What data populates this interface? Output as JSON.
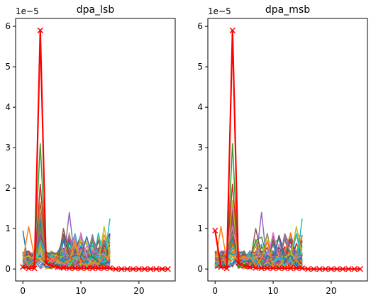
{
  "chart_data": [
    {
      "type": "line",
      "title": "dpa_lsb",
      "offset_label": "1e−5",
      "xlabel": "",
      "ylabel": "",
      "xlim": [
        -1.25,
        26.25
      ],
      "ylim": [
        -0.295,
        6.195
      ],
      "xticks": [
        0,
        10,
        20
      ],
      "yticks": [
        0,
        1,
        2,
        3,
        4,
        5,
        6
      ],
      "grid": false,
      "legend": "none",
      "highlight": {
        "name": "max",
        "color": "#ff0000",
        "marker": "x",
        "x": [
          0,
          1,
          2,
          3,
          4,
          5,
          6,
          7,
          8,
          9,
          10,
          11,
          12,
          13,
          14,
          15,
          16,
          17,
          18,
          19,
          20,
          21,
          22,
          23,
          24,
          25
        ],
        "y": [
          0.05,
          0.02,
          0.02,
          5.9,
          0.15,
          0.08,
          0.05,
          0.03,
          0.02,
          0.02,
          0.02,
          0.02,
          0.02,
          0.02,
          0.02,
          0.02,
          0.0,
          0.0,
          0.0,
          0.0,
          0.0,
          0.0,
          0.0,
          0.0,
          0.0,
          0.0
        ]
      },
      "background_series": {
        "count": "many",
        "colors": [
          "#1f77b4",
          "#ff7f0e",
          "#2ca02c",
          "#d62728",
          "#9467bd",
          "#8c564b",
          "#e377c2",
          "#7f7f7f",
          "#bcbd22",
          "#17becf"
        ],
        "peaks": [
          {
            "x": 0,
            "y": 0.95
          },
          {
            "x": 1,
            "y": 1.05
          },
          {
            "x": 3,
            "y": 3.1
          },
          {
            "x": 3,
            "y": 2.1
          },
          {
            "x": 8,
            "y": 1.4
          },
          {
            "x": 7,
            "y": 1.0
          },
          {
            "x": 10,
            "y": 0.9
          },
          {
            "x": 12,
            "y": 0.85
          },
          {
            "x": 14,
            "y": 1.05
          },
          {
            "x": 15,
            "y": 1.25
          },
          {
            "x": 11,
            "y": 0.8
          },
          {
            "x": 9,
            "y": 0.7
          }
        ]
      }
    },
    {
      "type": "line",
      "title": "dpa_msb",
      "offset_label": "1e−5",
      "xlabel": "",
      "ylabel": "",
      "xlim": [
        -1.25,
        26.25
      ],
      "ylim": [
        -0.295,
        6.195
      ],
      "xticks": [
        0,
        10,
        20
      ],
      "yticks": [
        0,
        1,
        2,
        3,
        4,
        5,
        6
      ],
      "grid": false,
      "legend": "none",
      "highlight": {
        "name": "max",
        "color": "#ff0000",
        "marker": "x",
        "x": [
          0,
          1,
          2,
          3,
          4,
          5,
          6,
          7,
          8,
          9,
          10,
          11,
          12,
          13,
          14,
          15,
          16,
          17,
          18,
          19,
          20,
          21,
          22,
          23,
          24,
          25
        ],
        "y": [
          0.95,
          0.05,
          0.02,
          5.9,
          0.15,
          0.08,
          0.05,
          0.03,
          0.02,
          0.02,
          0.02,
          0.02,
          0.02,
          0.02,
          0.02,
          0.02,
          0.0,
          0.0,
          0.0,
          0.0,
          0.0,
          0.0,
          0.0,
          0.0,
          0.0,
          0.0
        ]
      },
      "background_series": {
        "count": "many",
        "colors": [
          "#1f77b4",
          "#ff7f0e",
          "#2ca02c",
          "#d62728",
          "#9467bd",
          "#8c564b",
          "#e377c2",
          "#7f7f7f",
          "#bcbd22",
          "#17becf"
        ],
        "peaks": [
          {
            "x": 0,
            "y": 0.95
          },
          {
            "x": 1,
            "y": 1.05
          },
          {
            "x": 3,
            "y": 3.1
          },
          {
            "x": 3,
            "y": 2.1
          },
          {
            "x": 8,
            "y": 1.4
          },
          {
            "x": 7,
            "y": 1.0
          },
          {
            "x": 10,
            "y": 0.9
          },
          {
            "x": 12,
            "y": 0.85
          },
          {
            "x": 14,
            "y": 1.05
          },
          {
            "x": 15,
            "y": 1.25
          },
          {
            "x": 11,
            "y": 0.8
          },
          {
            "x": 9,
            "y": 0.7
          }
        ]
      }
    }
  ]
}
